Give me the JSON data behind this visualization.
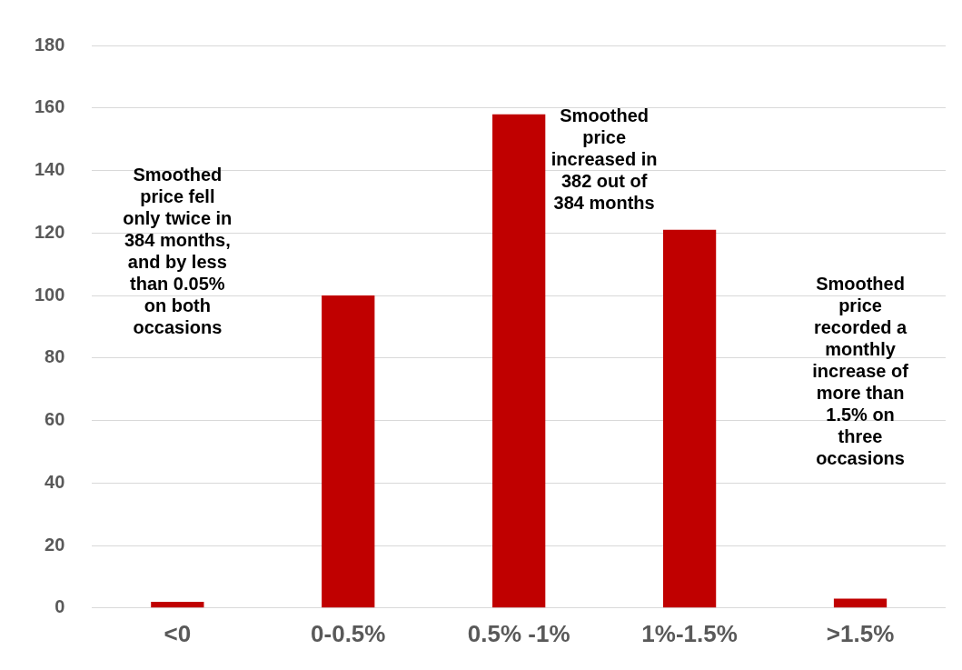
{
  "chart_data": {
    "type": "bar",
    "categories": [
      "<0",
      "0-0.5%",
      "0.5% -1%",
      "1%-1.5%",
      ">1.5%"
    ],
    "values": [
      2,
      100,
      158,
      121,
      3
    ],
    "color": "#c00000",
    "ylim": [
      0,
      180
    ],
    "yticks": [
      0,
      20,
      40,
      60,
      80,
      100,
      120,
      140,
      160,
      180
    ],
    "grid": "y",
    "annotations": [
      "Smoothed price fell only twice in 384 months, and by less than 0.05% on both occasions",
      "Smoothed price increased in 382 out of 384 months",
      "Smoothed price recorded a monthly increase of more than 1.5% on three occasions"
    ]
  }
}
